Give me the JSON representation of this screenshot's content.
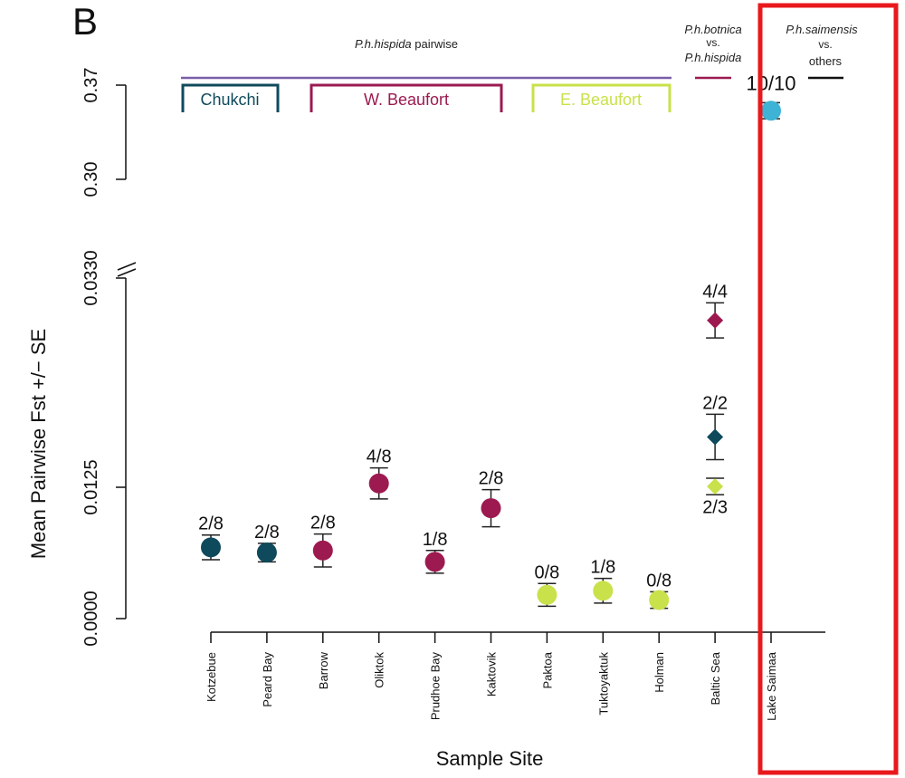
{
  "panel_letter": "B",
  "chart_data": {
    "type": "scatter",
    "ylabel": "Mean Pairwise Fst +/− SE",
    "xlabel": "Sample Site",
    "y_broken_axis": true,
    "y_ticks_lower": [
      "0.0000",
      "0.0125",
      "0.0330"
    ],
    "y_ticks_upper": [
      "0.30",
      "0.37"
    ],
    "ylim_lower": [
      0,
      0.033
    ],
    "ylim_upper": [
      0.3,
      0.37
    ],
    "categories": [
      "Kotzebue",
      "Peard Bay",
      "Barrow",
      "Oliktok",
      "Prudhoe Bay",
      "Kaktovik",
      "Paktoa",
      "Tuktoyaktuk",
      "Holman",
      "Baltic Sea",
      "Lake Saimaa"
    ],
    "colors": {
      "chukchi": "#0f4a5c",
      "w_beaufort": "#9c1a50",
      "e_beaufort": "#c9e14a",
      "saimaa": "#3eb3d6",
      "hispida_bracket": "#7a5fa8",
      "highlight": "#e8181c"
    },
    "points": [
      {
        "site": "Kotzebue",
        "shape": "circle",
        "group": "chukchi",
        "y": 0.0069,
        "se": 0.0012,
        "label": "2/8"
      },
      {
        "site": "Peard Bay",
        "shape": "circle",
        "group": "chukchi",
        "y": 0.0064,
        "se": 0.0009,
        "label": "2/8"
      },
      {
        "site": "Barrow",
        "shape": "circle",
        "group": "w_beaufort",
        "y": 0.0066,
        "se": 0.0016,
        "label": "2/8"
      },
      {
        "site": "Oliktok",
        "shape": "circle",
        "group": "w_beaufort",
        "y": 0.0131,
        "se": 0.0015,
        "label": "4/8"
      },
      {
        "site": "Prudhoe Bay",
        "shape": "circle",
        "group": "w_beaufort",
        "y": 0.0055,
        "se": 0.0011,
        "label": "1/8"
      },
      {
        "site": "Kaktovik",
        "shape": "circle",
        "group": "w_beaufort",
        "y": 0.0107,
        "se": 0.0018,
        "label": "2/8"
      },
      {
        "site": "Paktoa",
        "shape": "circle",
        "group": "e_beaufort",
        "y": 0.0023,
        "se": 0.0011,
        "label": "0/8"
      },
      {
        "site": "Tuktoyaktuk",
        "shape": "circle",
        "group": "e_beaufort",
        "y": 0.0027,
        "se": 0.0012,
        "label": "1/8"
      },
      {
        "site": "Holman",
        "shape": "circle",
        "group": "e_beaufort",
        "y": 0.0018,
        "se": 0.0008,
        "label": "0/8"
      },
      {
        "site": "Baltic Sea",
        "shape": "diamond",
        "group": "w_beaufort",
        "y": 0.0289,
        "se": 0.0017,
        "label": "4/4"
      },
      {
        "site": "Baltic Sea",
        "shape": "diamond",
        "group": "chukchi",
        "y": 0.0176,
        "se": 0.0022,
        "label": "2/2"
      },
      {
        "site": "Baltic Sea",
        "shape": "diamond",
        "group": "e_beaufort",
        "y": 0.0128,
        "se": 0.0008,
        "label": "2/3"
      },
      {
        "site": "Lake Saimaa",
        "shape": "circle",
        "group": "saimaa",
        "y": 0.351,
        "se": 0.006,
        "label": "10/10",
        "upper": true
      }
    ],
    "headers": {
      "hispida_italic": "P.h.hispida",
      "hispida_rest": " pairwise",
      "botnica_line1": "P.h.botnica",
      "botnica_line2": "vs.",
      "botnica_line3": "P.h.hispida",
      "saimensis_line1": "P.h.saimensis",
      "saimensis_line2": "vs.",
      "saimensis_line3": "others"
    },
    "groups": [
      {
        "name": "Chukchi",
        "key": "chukchi"
      },
      {
        "name": "W. Beaufort",
        "key": "w_beaufort"
      },
      {
        "name": "E. Beaufort",
        "key": "e_beaufort"
      }
    ]
  }
}
